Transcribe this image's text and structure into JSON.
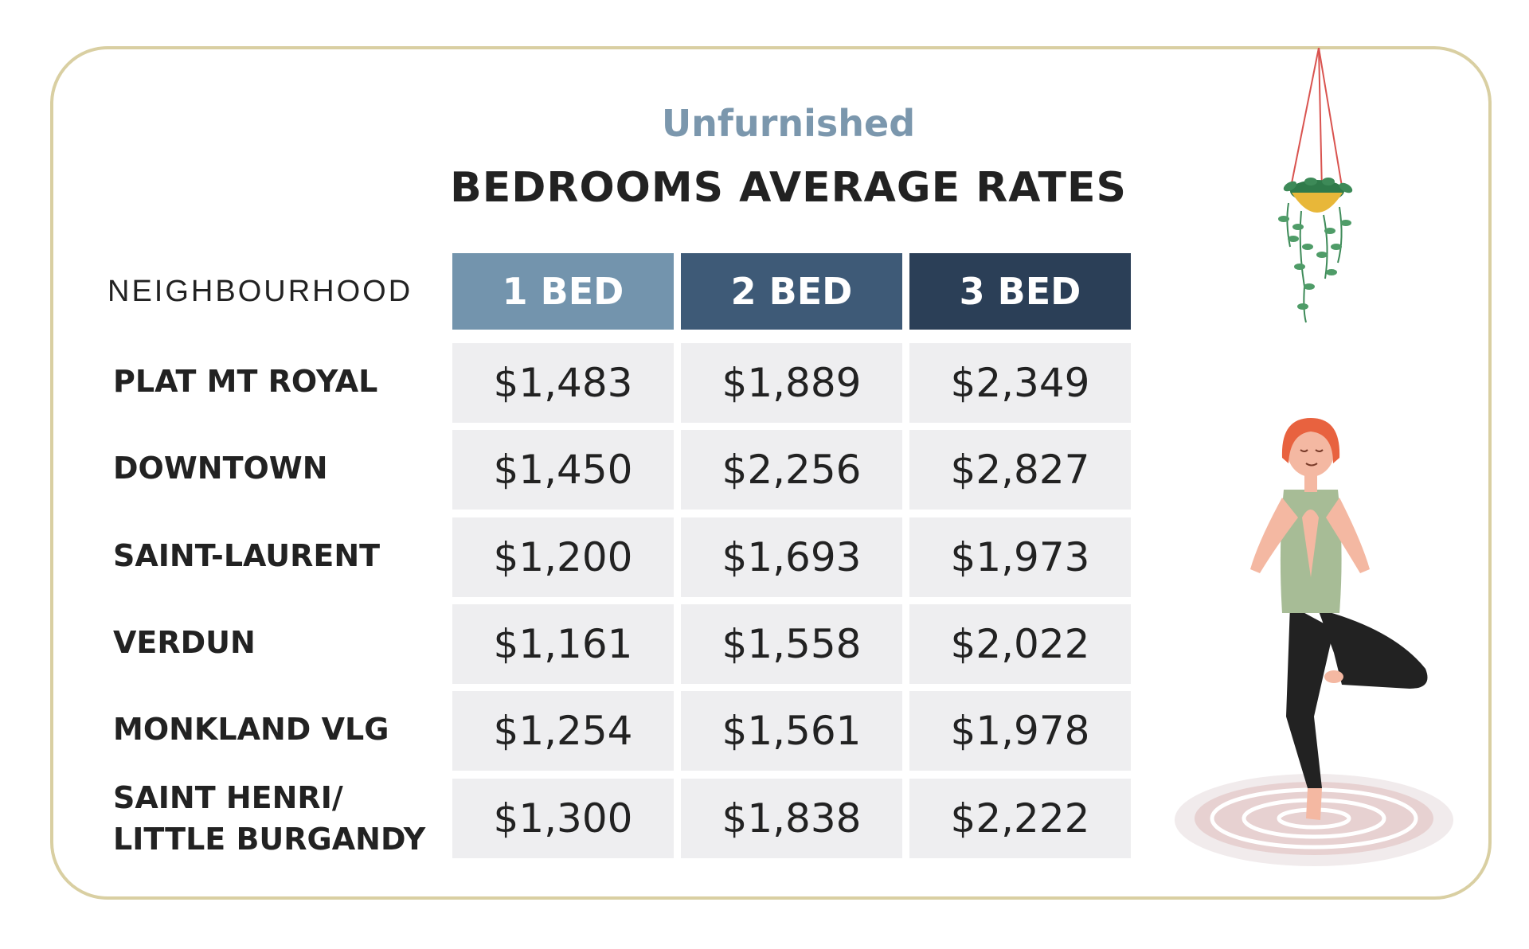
{
  "chart_data": {
    "type": "table",
    "subtitle": "Unfurnished",
    "title": "BEDROOMS AVERAGE RATES",
    "row_header": "NEIGHBOURHOOD",
    "columns": [
      "1 BED",
      "2 BED",
      "3 BED"
    ],
    "column_colors": [
      "#7394ad",
      "#3e5a77",
      "#2b3f57"
    ],
    "rows": [
      {
        "name": "PLAT MT ROYAL",
        "values": [
          "$1,483",
          "$1,889",
          "$2,349"
        ]
      },
      {
        "name": "DOWNTOWN",
        "values": [
          "$1,450",
          "$2,256",
          "$2,827"
        ]
      },
      {
        "name": "SAINT-LAURENT",
        "values": [
          "$1,200",
          "$1,693",
          "$1,973"
        ]
      },
      {
        "name": "VERDUN",
        "values": [
          "$1,161",
          "$1,558",
          "$2,022"
        ]
      },
      {
        "name": "MONKLAND VLG",
        "values": [
          "$1,254",
          "$1,561",
          "$1,978"
        ]
      },
      {
        "name": "SAINT HENRI/\nLITTLE BURGANDY",
        "values": [
          "$1,300",
          "$1,838",
          "$2,222"
        ]
      }
    ]
  },
  "decorations": {
    "plant": "hanging-plant-icon",
    "person": "yoga-person-icon"
  }
}
